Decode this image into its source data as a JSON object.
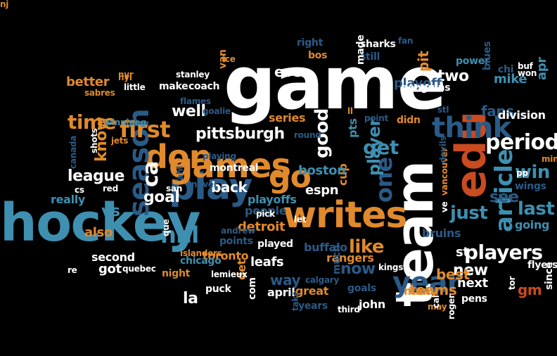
{
  "palette": {
    "background": "#000000",
    "white": "#ffffff",
    "orange": "#e08a2c",
    "red": "#c94b20",
    "teal": "#3e8fb0",
    "blue": "#2a5a86",
    "navy": "#254a70"
  },
  "words": [
    {
      "text": "game",
      "color": "white"
    },
    {
      "text": "hockey",
      "color": "teal"
    },
    {
      "text": "team",
      "color": "white"
    },
    {
      "text": "edu",
      "color": "red"
    },
    {
      "text": "writes",
      "color": "orange"
    },
    {
      "text": "play",
      "color": "blue"
    },
    {
      "text": "games",
      "color": "orange"
    },
    {
      "text": "don",
      "color": "orange"
    },
    {
      "text": "go",
      "color": "orange"
    },
    {
      "text": "think",
      "color": "blue"
    },
    {
      "text": "season",
      "color": "blue"
    },
    {
      "text": "year",
      "color": "blue"
    },
    {
      "text": "article",
      "color": "teal"
    },
    {
      "text": "first",
      "color": "orange"
    },
    {
      "text": "nhl",
      "color": "teal"
    },
    {
      "text": "one",
      "color": "blue"
    },
    {
      "text": "ca",
      "color": "white"
    },
    {
      "text": "period",
      "color": "white"
    },
    {
      "text": "players",
      "color": "white"
    },
    {
      "text": "get",
      "color": "teal"
    },
    {
      "text": "time",
      "color": "orange"
    },
    {
      "text": "good",
      "color": "white"
    },
    {
      "text": "win",
      "color": "teal"
    },
    {
      "text": "just",
      "color": "teal"
    },
    {
      "text": "last",
      "color": "teal"
    },
    {
      "text": "like",
      "color": "orange"
    },
    {
      "text": "player",
      "color": "teal"
    },
    {
      "text": "pittsburgh",
      "color": "white"
    },
    {
      "text": "league",
      "color": "white"
    },
    {
      "text": "goal",
      "color": "white"
    },
    {
      "text": "know",
      "color": "orange"
    },
    {
      "text": "well",
      "color": "white"
    },
    {
      "text": "two",
      "color": "white"
    },
    {
      "text": "now",
      "color": "blue"
    },
    {
      "text": "new",
      "color": "white"
    },
    {
      "text": "teams",
      "color": "orange"
    },
    {
      "text": "see",
      "color": "blue"
    },
    {
      "text": "vs",
      "color": "teal"
    },
    {
      "text": "fans",
      "color": "blue"
    },
    {
      "text": "back",
      "color": "white"
    },
    {
      "text": "espn",
      "color": "white"
    },
    {
      "text": "pit",
      "color": "orange"
    },
    {
      "text": "cup",
      "color": "orange"
    },
    {
      "text": "pts",
      "color": "teal"
    },
    {
      "text": "st",
      "color": "white"
    },
    {
      "text": "division",
      "color": "white"
    },
    {
      "text": "next",
      "color": "white"
    },
    {
      "text": "gm",
      "color": "red"
    },
    {
      "text": "la",
      "color": "white"
    },
    {
      "text": "way",
      "color": "blue"
    },
    {
      "text": "best",
      "color": "orange"
    },
    {
      "text": "even",
      "color": "white"
    },
    {
      "text": "boston",
      "color": "teal"
    },
    {
      "text": "detroit",
      "color": "orange"
    },
    {
      "text": "playoffs",
      "color": "teal"
    },
    {
      "text": "people",
      "color": "blue"
    },
    {
      "text": "series",
      "color": "orange"
    },
    {
      "text": "really",
      "color": "teal"
    },
    {
      "text": "leafs",
      "color": "white"
    },
    {
      "text": "toronto",
      "color": "orange"
    },
    {
      "text": "rangers",
      "color": "orange"
    },
    {
      "text": "buffalo",
      "color": "blue"
    },
    {
      "text": "playoff",
      "color": "blue"
    },
    {
      "text": "better",
      "color": "orange"
    },
    {
      "text": "montreal",
      "color": "white"
    },
    {
      "text": "going",
      "color": "teal"
    },
    {
      "text": "wings",
      "color": "blue"
    },
    {
      "text": "played",
      "color": "white"
    },
    {
      "text": "second",
      "color": "white"
    },
    {
      "text": "got",
      "color": "white"
    },
    {
      "text": "much",
      "color": "blue"
    },
    {
      "text": "great",
      "color": "orange"
    },
    {
      "text": "goals",
      "color": "blue"
    },
    {
      "text": "many",
      "color": "orange"
    },
    {
      "text": "april",
      "color": "white"
    },
    {
      "text": "john",
      "color": "white"
    },
    {
      "text": "apr",
      "color": "teal"
    },
    {
      "text": "mike",
      "color": "teal"
    },
    {
      "text": "also",
      "color": "orange"
    },
    {
      "text": "power",
      "color": "teal"
    },
    {
      "text": "flyers",
      "color": "white"
    },
    {
      "text": "bruins",
      "color": "blue"
    },
    {
      "text": "chicago",
      "color": "teal"
    },
    {
      "text": "night",
      "color": "orange"
    },
    {
      "text": "points",
      "color": "blue"
    },
    {
      "text": "det",
      "color": "orange"
    },
    {
      "text": "com",
      "color": "white"
    },
    {
      "text": "puck",
      "color": "white"
    },
    {
      "text": "make",
      "color": "white"
    },
    {
      "text": "coach",
      "color": "white"
    },
    {
      "text": "still",
      "color": "blue"
    },
    {
      "text": "sharks",
      "color": "white"
    },
    {
      "text": "made",
      "color": "white"
    },
    {
      "text": "bos",
      "color": "orange"
    },
    {
      "text": "right",
      "color": "blue"
    },
    {
      "text": "didn",
      "color": "orange"
    },
    {
      "text": "penguins",
      "color": "white"
    },
    {
      "text": "years",
      "color": "blue"
    },
    {
      "text": "pens",
      "color": "white"
    },
    {
      "text": "blues",
      "color": "blue"
    },
    {
      "text": "chi",
      "color": "blue"
    },
    {
      "text": "buf",
      "color": "white"
    },
    {
      "text": "won",
      "color": "white"
    },
    {
      "text": "lemieux",
      "color": "white"
    },
    {
      "text": "islanders",
      "color": "orange"
    },
    {
      "text": "kings",
      "color": "white"
    },
    {
      "text": "let",
      "color": "white"
    },
    {
      "text": "since",
      "color": "white"
    },
    {
      "text": "tor",
      "color": "white"
    },
    {
      "text": "may",
      "color": "orange"
    },
    {
      "text": "take",
      "color": "blue"
    },
    {
      "text": "van",
      "color": "orange"
    },
    {
      "text": "ice",
      "color": "orange"
    },
    {
      "text": "nyr",
      "color": "orange"
    },
    {
      "text": "nyi",
      "color": "orange"
    },
    {
      "text": "little",
      "color": "white"
    },
    {
      "text": "stanley",
      "color": "white"
    },
    {
      "text": "sabres",
      "color": "orange"
    },
    {
      "text": "flames",
      "color": "blue"
    },
    {
      "text": "winnipeg",
      "color": "teal"
    },
    {
      "text": "jets",
      "color": "orange"
    },
    {
      "text": "shots",
      "color": "white"
    },
    {
      "text": "canada",
      "color": "blue"
    },
    {
      "text": "cs",
      "color": "white"
    },
    {
      "text": "red",
      "color": "white"
    },
    {
      "text": "ahl",
      "color": "blue"
    },
    {
      "text": "san",
      "color": "white"
    },
    {
      "text": "never",
      "color": "blue"
    },
    {
      "text": "pick",
      "color": "white"
    },
    {
      "text": "andrew",
      "color": "blue"
    },
    {
      "text": "que",
      "color": "white"
    },
    {
      "text": "re",
      "color": "white"
    },
    {
      "text": "quebec",
      "color": "white"
    },
    {
      "text": "calgary",
      "color": "blue"
    },
    {
      "text": "third",
      "color": "white"
    },
    {
      "text": "cal",
      "color": "white"
    },
    {
      "text": "roger",
      "color": "white"
    },
    {
      "text": "vancouver",
      "color": "orange"
    },
    {
      "text": "ve",
      "color": "white"
    },
    {
      "text": "devils",
      "color": "blue"
    },
    {
      "text": "stl",
      "color": "blue"
    },
    {
      "text": "pp",
      "color": "white"
    },
    {
      "text": "min",
      "color": "orange"
    },
    {
      "text": "fan",
      "color": "blue"
    },
    {
      "text": "point",
      "color": "blue"
    },
    {
      "text": "round",
      "color": "blue"
    },
    {
      "text": "goalie",
      "color": "blue"
    },
    {
      "text": "playing",
      "color": "blue"
    },
    {
      "text": "ll",
      "color": "orange"
    },
    {
      "text": "nj",
      "color": "orange"
    }
  ]
}
